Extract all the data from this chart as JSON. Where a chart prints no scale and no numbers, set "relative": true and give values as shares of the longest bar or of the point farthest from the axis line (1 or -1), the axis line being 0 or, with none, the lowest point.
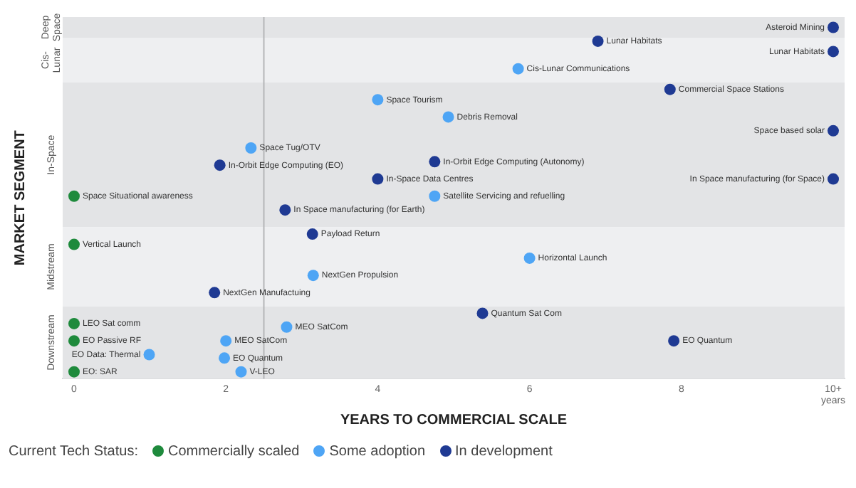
{
  "chart_data": {
    "type": "scatter",
    "relative": true,
    "xlabel": "YEARS TO COMMERCIAL SCALE",
    "ylabel": "MARKET SEGMENT",
    "legend_title": "Current Tech Status:",
    "legend": "bottom left",
    "marker": "circle",
    "tick_labels": "x",
    "xlim": [
      -0.15,
      10.15
    ],
    "xticks": [
      0,
      2,
      4,
      6,
      8,
      {
        "value": 10,
        "label": "10+ years"
      }
    ],
    "series": [
      {
        "name": "Commercially scaled",
        "color": "#1e8a3c",
        "x": [
          0,
          0,
          0,
          0,
          0
        ],
        "values": [
          0.51,
          0.37,
          0.14,
          0.09,
          0
        ]
      },
      {
        "name": "Some adoption",
        "color": "#4ea5f5",
        "x": [
          5.85,
          4.0,
          4.93,
          2.33,
          4.75,
          3.15,
          6.0,
          2.8,
          2.0,
          0.99,
          1.98,
          2.2
        ],
        "values": [
          0.88,
          0.79,
          0.74,
          0.65,
          0.51,
          0.28,
          0.33,
          0.13,
          0.09,
          0.05,
          0.04,
          0
        ]
      },
      {
        "name": "In development",
        "color": "#1f3a93",
        "x": [
          10,
          6.9,
          10,
          7.85,
          10,
          1.92,
          4.75,
          4.0,
          10,
          2.78,
          3.14,
          1.85,
          5.38,
          7.9
        ],
        "values": [
          1,
          0.96,
          0.93,
          0.82,
          0.7,
          0.6,
          0.61,
          0.56,
          0.56,
          0.47,
          0.4,
          0.23,
          0.17,
          0.09
        ]
      }
    ],
    "bands": [
      {
        "axis": "y",
        "from": 0.97,
        "to": 1.03,
        "label": "Deep Space",
        "color": "#e3e4e6"
      },
      {
        "axis": "y",
        "from": 0.84,
        "to": 0.97,
        "label": "Cis-Lunar",
        "color": "#eeeff1"
      },
      {
        "axis": "y",
        "from": 0.42,
        "to": 0.84,
        "label": "In-Space",
        "color": "#e3e4e6"
      },
      {
        "axis": "y",
        "from": 0.19,
        "to": 0.42,
        "label": "Midstream",
        "color": "#eeeff1"
      },
      {
        "axis": "y",
        "from": -0.02,
        "to": 0.19,
        "label": "Downstream",
        "color": "#e3e4e6"
      }
    ],
    "ref_lines": [
      {
        "axis": "x",
        "value": 2.5,
        "color": "#b5b6b8"
      }
    ],
    "annotations": [
      {
        "text": "Asteroid Mining",
        "x": 10,
        "y": 1
      },
      {
        "text": "Lunar Habitats",
        "x": 6.9,
        "y": 0.96
      },
      {
        "text": "Lunar Habitats",
        "x": 10,
        "y": 0.93
      },
      {
        "text": "Cis-Lunar Communications",
        "x": 5.85,
        "y": 0.88
      },
      {
        "text": "Commercial Space Stations",
        "x": 7.85,
        "y": 0.82
      },
      {
        "text": "Space Tourism",
        "x": 4.0,
        "y": 0.79
      },
      {
        "text": "Debris Removal",
        "x": 4.93,
        "y": 0.74
      },
      {
        "text": "Space based solar",
        "x": 10,
        "y": 0.7
      },
      {
        "text": "Space Tug/OTV",
        "x": 2.33,
        "y": 0.65
      },
      {
        "text": "In-Orbit Edge Computing (EO)",
        "x": 1.92,
        "y": 0.6
      },
      {
        "text": "In-Orbit Edge Computing (Autonomy)",
        "x": 4.75,
        "y": 0.61
      },
      {
        "text": "In-Space Data Centres",
        "x": 4.0,
        "y": 0.56
      },
      {
        "text": "In Space manufacturing (for Space)",
        "x": 10,
        "y": 0.56
      },
      {
        "text": "Space Situational awareness",
        "x": 0,
        "y": 0.51
      },
      {
        "text": "Satellite Servicing and refuelling",
        "x": 4.75,
        "y": 0.51
      },
      {
        "text": "In Space manufacturing (for Earth)",
        "x": 2.78,
        "y": 0.47
      },
      {
        "text": "Payload Return",
        "x": 3.14,
        "y": 0.4
      },
      {
        "text": "Vertical Launch",
        "x": 0,
        "y": 0.37
      },
      {
        "text": "Horizontal Launch",
        "x": 6.0,
        "y": 0.33
      },
      {
        "text": "NextGen Propulsion",
        "x": 3.15,
        "y": 0.28
      },
      {
        "text": "NextGen Manufactuing",
        "x": 1.85,
        "y": 0.23
      },
      {
        "text": "Quantum Sat Com",
        "x": 5.38,
        "y": 0.17
      },
      {
        "text": "LEO Sat comm",
        "x": 0,
        "y": 0.14
      },
      {
        "text": "MEO SatCom",
        "x": 2.8,
        "y": 0.13
      },
      {
        "text": "EO Passive RF",
        "x": 0,
        "y": 0.09
      },
      {
        "text": "MEO SatCom",
        "x": 2.0,
        "y": 0.09
      },
      {
        "text": "EO Quantum",
        "x": 7.9,
        "y": 0.09
      },
      {
        "text": "EO Data: Thermal",
        "x": 0.99,
        "y": 0.05
      },
      {
        "text": "EO Quantum",
        "x": 1.98,
        "y": 0.04
      },
      {
        "text": "EO: SAR",
        "x": 0,
        "y": 0
      },
      {
        "text": "V-LEO",
        "x": 2.2,
        "y": 0
      }
    ]
  }
}
